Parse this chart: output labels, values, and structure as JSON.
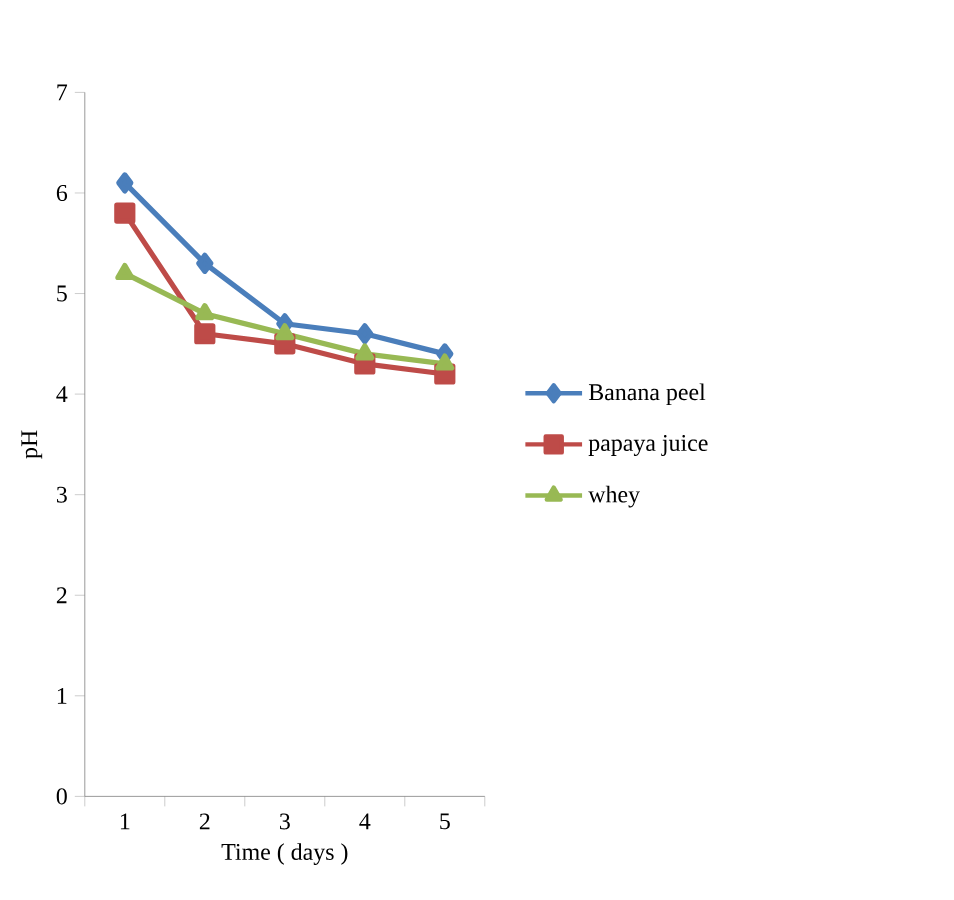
{
  "chart_data": {
    "type": "line",
    "xlabel": "Time ( days )",
    "ylabel": "pH",
    "categories": [
      "1",
      "2",
      "3",
      "4",
      "5"
    ],
    "ylim": [
      0,
      7
    ],
    "yticks": [
      0,
      1,
      2,
      3,
      4,
      5,
      6,
      7
    ],
    "grid": false,
    "legend": "right",
    "series": [
      {
        "name": "Banana peel",
        "color": "#4a7ebb",
        "marker": "diamond",
        "values": [
          6.1,
          5.3,
          4.7,
          4.6,
          4.4
        ]
      },
      {
        "name": "papaya juice",
        "color": "#be4b48",
        "marker": "square",
        "values": [
          5.8,
          4.6,
          4.5,
          4.3,
          4.2
        ]
      },
      {
        "name": "whey",
        "color": "#98b954",
        "marker": "triangle",
        "values": [
          5.2,
          4.8,
          4.6,
          4.4,
          4.3
        ]
      }
    ]
  }
}
